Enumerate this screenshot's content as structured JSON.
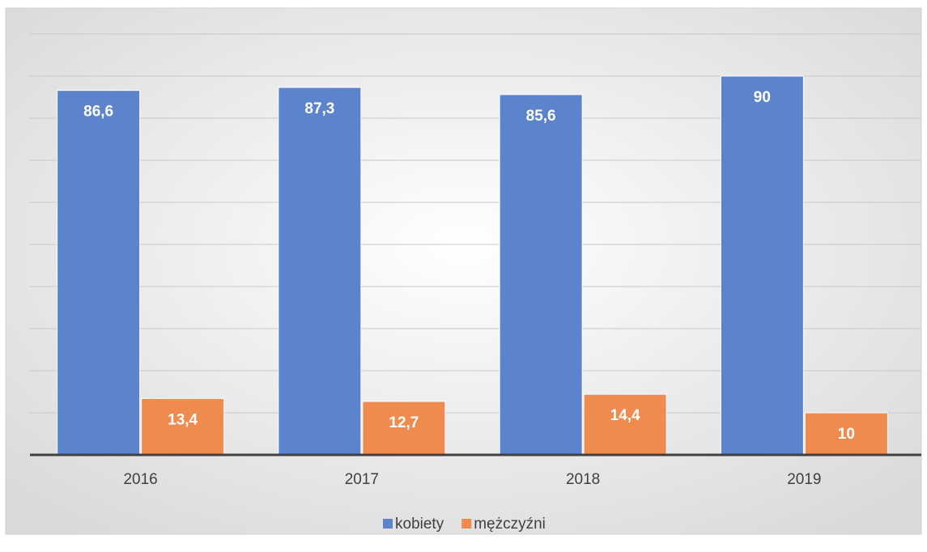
{
  "chart_data": {
    "type": "bar",
    "categories": [
      "2016",
      "2017",
      "2018",
      "2019"
    ],
    "series": [
      {
        "name": "kobiety",
        "color": "#5b84cd",
        "values": [
          86.6,
          87.3,
          85.6,
          90
        ],
        "value_labels": [
          "86,6",
          "87,3",
          "85,6",
          "90"
        ]
      },
      {
        "name": "mężczyźni",
        "color": "#ef8b4f",
        "values": [
          13.4,
          12.7,
          14.4,
          10
        ],
        "value_labels": [
          "13,4",
          "12,7",
          "14,4",
          "10"
        ]
      }
    ],
    "ylim": [
      0,
      100
    ],
    "yticks": [
      0,
      10,
      20,
      30,
      40,
      50,
      60,
      70,
      80,
      90,
      100
    ],
    "grid": true,
    "legend": "bottom"
  }
}
